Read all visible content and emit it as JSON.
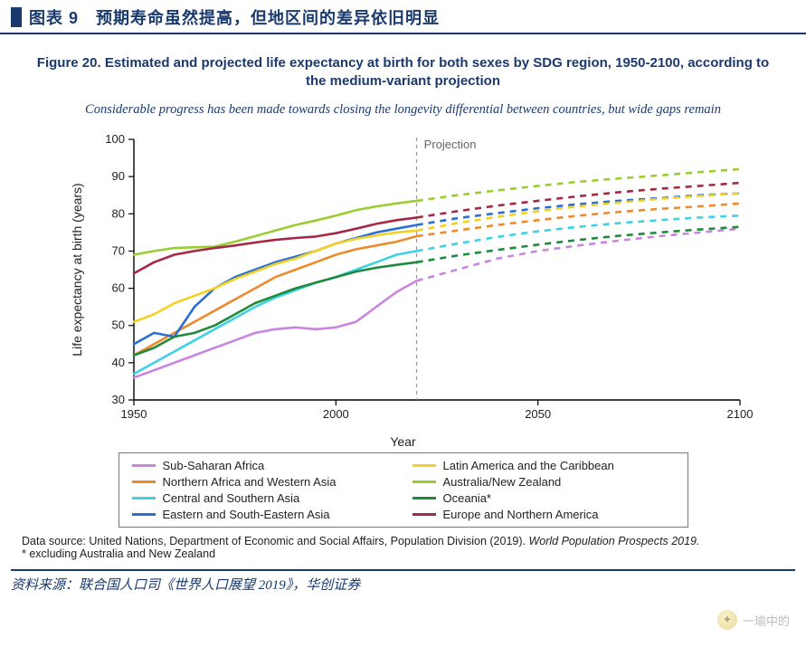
{
  "header": {
    "label": "图表 9　预期寿命虽然提高，但地区间的差异依旧明显"
  },
  "figure": {
    "title": "Figure 20. Estimated and projected life expectancy at birth for both sexes by SDG region, 1950-2100, according to the medium-variant projection",
    "subtitle": "Considerable progress has been made towards closing the longevity differential between countries, but wide gaps remain"
  },
  "chart": {
    "type": "line",
    "x_label": "Year",
    "y_label": "Life expectancy at birth (years)",
    "xlim": [
      1950,
      2100
    ],
    "ylim": [
      30,
      100
    ],
    "x_ticks": [
      1950,
      2000,
      2050,
      2100
    ],
    "y_ticks": [
      30,
      40,
      50,
      60,
      70,
      80,
      90,
      100
    ],
    "projection_x": 2020,
    "projection_label": "Projection",
    "background_color": "#ffffff",
    "axis_color": "#000000",
    "proj_line_color": "#888888",
    "line_width_solid": 2.6,
    "line_width_dash": 2.6,
    "dash_pattern": "7 6",
    "series": [
      {
        "name": "Sub-Saharan Africa",
        "color": "#c986e0",
        "solid": [
          [
            1950,
            36
          ],
          [
            1955,
            38
          ],
          [
            1960,
            40
          ],
          [
            1965,
            42
          ],
          [
            1970,
            44
          ],
          [
            1975,
            46
          ],
          [
            1980,
            48
          ],
          [
            1985,
            49
          ],
          [
            1990,
            49.5
          ],
          [
            1995,
            49
          ],
          [
            2000,
            49.5
          ],
          [
            2005,
            51
          ],
          [
            2010,
            55
          ],
          [
            2015,
            59
          ],
          [
            2020,
            62
          ]
        ],
        "dash": [
          [
            2020,
            62
          ],
          [
            2030,
            65
          ],
          [
            2040,
            68
          ],
          [
            2050,
            70
          ],
          [
            2060,
            71.5
          ],
          [
            2070,
            72.8
          ],
          [
            2080,
            74
          ],
          [
            2090,
            75
          ],
          [
            2100,
            76
          ]
        ]
      },
      {
        "name": "Northern Africa and Western Asia",
        "color": "#ef8a2c",
        "solid": [
          [
            1950,
            42
          ],
          [
            1955,
            45
          ],
          [
            1960,
            48
          ],
          [
            1965,
            51
          ],
          [
            1970,
            54
          ],
          [
            1975,
            57
          ],
          [
            1980,
            60
          ],
          [
            1985,
            63
          ],
          [
            1990,
            65
          ],
          [
            1995,
            67
          ],
          [
            2000,
            69
          ],
          [
            2005,
            70.5
          ],
          [
            2010,
            71.5
          ],
          [
            2015,
            72.5
          ],
          [
            2020,
            74
          ]
        ],
        "dash": [
          [
            2020,
            74
          ],
          [
            2030,
            75.5
          ],
          [
            2040,
            77
          ],
          [
            2050,
            78.3
          ],
          [
            2060,
            79.5
          ],
          [
            2070,
            80.5
          ],
          [
            2080,
            81.3
          ],
          [
            2090,
            82
          ],
          [
            2100,
            82.8
          ]
        ]
      },
      {
        "name": "Central and Southern Asia",
        "color": "#3fd0e6",
        "solid": [
          [
            1950,
            37
          ],
          [
            1955,
            40
          ],
          [
            1960,
            43
          ],
          [
            1965,
            46
          ],
          [
            1970,
            49
          ],
          [
            1975,
            52
          ],
          [
            1980,
            55
          ],
          [
            1985,
            57.5
          ],
          [
            1990,
            59.5
          ],
          [
            1995,
            61.5
          ],
          [
            2000,
            63
          ],
          [
            2005,
            65
          ],
          [
            2010,
            67
          ],
          [
            2015,
            69
          ],
          [
            2020,
            70
          ]
        ],
        "dash": [
          [
            2020,
            70
          ],
          [
            2030,
            72
          ],
          [
            2040,
            73.8
          ],
          [
            2050,
            75.3
          ],
          [
            2060,
            76.5
          ],
          [
            2070,
            77.5
          ],
          [
            2080,
            78.3
          ],
          [
            2090,
            79
          ],
          [
            2100,
            79.5
          ]
        ]
      },
      {
        "name": "Eastern and South-Eastern Asia",
        "color": "#2a6fd6",
        "solid": [
          [
            1950,
            45
          ],
          [
            1955,
            48
          ],
          [
            1960,
            47
          ],
          [
            1965,
            55
          ],
          [
            1970,
            60
          ],
          [
            1975,
            63
          ],
          [
            1980,
            65
          ],
          [
            1985,
            67
          ],
          [
            1990,
            68.5
          ],
          [
            1995,
            70
          ],
          [
            2000,
            72
          ],
          [
            2005,
            73.5
          ],
          [
            2010,
            75
          ],
          [
            2015,
            76
          ],
          [
            2020,
            77
          ]
        ],
        "dash": [
          [
            2020,
            77
          ],
          [
            2030,
            78.8
          ],
          [
            2040,
            80.2
          ],
          [
            2050,
            81.5
          ],
          [
            2060,
            82.6
          ],
          [
            2070,
            83.5
          ],
          [
            2080,
            84.2
          ],
          [
            2090,
            85
          ],
          [
            2100,
            85.5
          ]
        ]
      },
      {
        "name": "Latin America and the Caribbean",
        "color": "#f4d021",
        "solid": [
          [
            1950,
            51
          ],
          [
            1955,
            53
          ],
          [
            1960,
            56
          ],
          [
            1965,
            58
          ],
          [
            1970,
            60
          ],
          [
            1975,
            62.5
          ],
          [
            1980,
            64.5
          ],
          [
            1985,
            66.5
          ],
          [
            1990,
            68
          ],
          [
            1995,
            70
          ],
          [
            2000,
            72
          ],
          [
            2005,
            73.3
          ],
          [
            2010,
            74.2
          ],
          [
            2015,
            75
          ],
          [
            2020,
            75.5
          ]
        ],
        "dash": [
          [
            2020,
            75.5
          ],
          [
            2030,
            77.5
          ],
          [
            2040,
            79.2
          ],
          [
            2050,
            80.7
          ],
          [
            2060,
            82
          ],
          [
            2070,
            83
          ],
          [
            2080,
            84
          ],
          [
            2090,
            84.8
          ],
          [
            2100,
            85.5
          ]
        ]
      },
      {
        "name": "Australia/New Zealand",
        "color": "#9acd32",
        "solid": [
          [
            1950,
            69
          ],
          [
            1955,
            70
          ],
          [
            1960,
            70.8
          ],
          [
            1965,
            71
          ],
          [
            1970,
            71.2
          ],
          [
            1975,
            72.5
          ],
          [
            1980,
            74
          ],
          [
            1985,
            75.5
          ],
          [
            1990,
            77
          ],
          [
            1995,
            78.2
          ],
          [
            2000,
            79.5
          ],
          [
            2005,
            81
          ],
          [
            2010,
            82
          ],
          [
            2015,
            82.8
          ],
          [
            2020,
            83.5
          ]
        ],
        "dash": [
          [
            2020,
            83.5
          ],
          [
            2030,
            85
          ],
          [
            2040,
            86.3
          ],
          [
            2050,
            87.5
          ],
          [
            2060,
            88.6
          ],
          [
            2070,
            89.5
          ],
          [
            2080,
            90.3
          ],
          [
            2090,
            91.2
          ],
          [
            2100,
            92
          ]
        ]
      },
      {
        "name": "Oceania*",
        "color": "#1e8a3b",
        "solid": [
          [
            1950,
            42
          ],
          [
            1955,
            44
          ],
          [
            1960,
            47
          ],
          [
            1965,
            48
          ],
          [
            1970,
            50
          ],
          [
            1975,
            53
          ],
          [
            1980,
            56
          ],
          [
            1985,
            58
          ],
          [
            1990,
            60
          ],
          [
            1995,
            61.5
          ],
          [
            2000,
            63
          ],
          [
            2005,
            64.5
          ],
          [
            2010,
            65.5
          ],
          [
            2015,
            66.3
          ],
          [
            2020,
            67
          ]
        ],
        "dash": [
          [
            2020,
            67
          ],
          [
            2030,
            68.8
          ],
          [
            2040,
            70.3
          ],
          [
            2050,
            71.7
          ],
          [
            2060,
            73
          ],
          [
            2070,
            74.1
          ],
          [
            2080,
            75
          ],
          [
            2090,
            75.8
          ],
          [
            2100,
            76.5
          ]
        ]
      },
      {
        "name": "Europe and Northern America",
        "color": "#a52846",
        "solid": [
          [
            1950,
            64
          ],
          [
            1955,
            67
          ],
          [
            1960,
            69
          ],
          [
            1965,
            70
          ],
          [
            1970,
            70.8
          ],
          [
            1975,
            71.5
          ],
          [
            1980,
            72.3
          ],
          [
            1985,
            73
          ],
          [
            1990,
            73.5
          ],
          [
            1995,
            73.9
          ],
          [
            2000,
            74.8
          ],
          [
            2005,
            76
          ],
          [
            2010,
            77.3
          ],
          [
            2015,
            78.3
          ],
          [
            2020,
            79
          ]
        ],
        "dash": [
          [
            2020,
            79
          ],
          [
            2030,
            80.7
          ],
          [
            2040,
            82.2
          ],
          [
            2050,
            83.5
          ],
          [
            2060,
            84.7
          ],
          [
            2070,
            85.8
          ],
          [
            2080,
            86.7
          ],
          [
            2090,
            87.5
          ],
          [
            2100,
            88.3
          ]
        ]
      }
    ]
  },
  "legend": {
    "order_left": [
      0,
      1,
      2,
      3
    ],
    "order_right": [
      4,
      5,
      6,
      7
    ]
  },
  "data_source": {
    "line1_a": "Data source: United Nations, Department of Economic and Social Affairs, Population Division (2019). ",
    "line1_b": "World Population Prospects 2019.",
    "line2": "* excluding Australia and New Zealand"
  },
  "footer": {
    "source": "资料来源：联合国人口司《世界人口展望 2019》，华创证券"
  },
  "watermark": {
    "text": "一瑜中的"
  }
}
